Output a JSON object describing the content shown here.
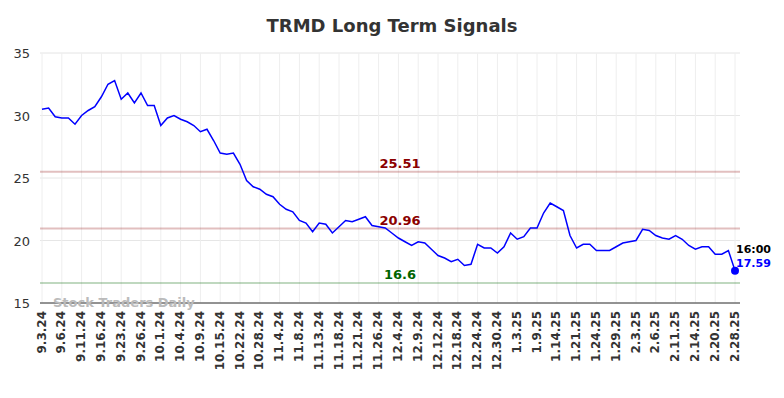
{
  "chart_data": {
    "type": "line",
    "title": "TRMD Long Term Signals",
    "watermark": "Stock Traders Daily",
    "time_label": "16:00",
    "categories": [
      "9.3.24",
      null,
      null,
      "9.6.24",
      null,
      null,
      "9.11.24",
      null,
      null,
      "9.16.24",
      null,
      null,
      "9.23.24",
      null,
      null,
      "9.26.24",
      null,
      null,
      "10.1.24",
      null,
      null,
      "10.4.24",
      null,
      null,
      "10.9.24",
      null,
      null,
      "10.15.24",
      null,
      null,
      "10.22.24",
      null,
      null,
      "10.28.24",
      null,
      null,
      "11.4.24",
      null,
      null,
      "11.8.24",
      null,
      null,
      "11.13.24",
      null,
      null,
      "11.18.24",
      null,
      null,
      "11.21.24",
      null,
      null,
      "11.26.24",
      null,
      null,
      "12.4.24",
      null,
      null,
      "12.9.24",
      null,
      null,
      "12.12.24",
      null,
      null,
      "12.18.24",
      null,
      null,
      "12.24.24",
      null,
      null,
      "12.30.24",
      null,
      null,
      "1.3.25",
      null,
      null,
      "1.9.25",
      null,
      null,
      "1.14.25",
      null,
      null,
      "1.21.25",
      null,
      null,
      "1.24.25",
      null,
      null,
      "1.29.25",
      null,
      null,
      "2.3.25",
      null,
      null,
      "2.6.25",
      null,
      null,
      "2.11.25",
      null,
      null,
      "2.14.25",
      null,
      null,
      "2.20.25",
      null,
      null,
      "2.28.25"
    ],
    "series": [
      {
        "name": "TRMD",
        "color": "#0000ff",
        "values": [
          30.5,
          30.6,
          29.9,
          29.8,
          29.8,
          29.3,
          30.0,
          30.4,
          30.7,
          31.5,
          32.5,
          32.8,
          31.3,
          31.8,
          31.0,
          31.8,
          30.8,
          30.8,
          29.2,
          29.8,
          30.0,
          29.7,
          29.5,
          29.2,
          28.7,
          28.9,
          28.0,
          27.0,
          26.9,
          27.0,
          26.1,
          24.8,
          24.3,
          24.1,
          23.7,
          23.5,
          22.9,
          22.5,
          22.3,
          21.6,
          21.4,
          20.7,
          21.4,
          21.3,
          20.6,
          21.1,
          21.6,
          21.5,
          21.7,
          21.9,
          21.2,
          21.1,
          21.0,
          20.6,
          20.2,
          19.9,
          19.6,
          19.9,
          19.8,
          19.3,
          18.8,
          18.6,
          18.3,
          18.5,
          18.0,
          18.1,
          19.7,
          19.4,
          19.4,
          19.0,
          19.5,
          20.6,
          20.1,
          20.3,
          21.0,
          21.0,
          22.2,
          23.0,
          22.7,
          22.4,
          20.4,
          19.4,
          19.7,
          19.7,
          19.2,
          19.2,
          19.2,
          19.5,
          19.8,
          19.9,
          20.0,
          20.9,
          20.8,
          20.4,
          20.2,
          20.1,
          20.4,
          20.1,
          19.6,
          19.3,
          19.5,
          19.5,
          18.9,
          18.9,
          19.2,
          17.59
        ]
      }
    ],
    "levels": [
      {
        "value": 25.51,
        "color": "#8b0000"
      },
      {
        "value": 20.96,
        "color": "#8b0000"
      },
      {
        "value": 16.6,
        "color": "#006400"
      }
    ],
    "ylim": [
      15,
      35
    ],
    "yticks": [
      15,
      20,
      25,
      30,
      35
    ],
    "grid": true
  }
}
